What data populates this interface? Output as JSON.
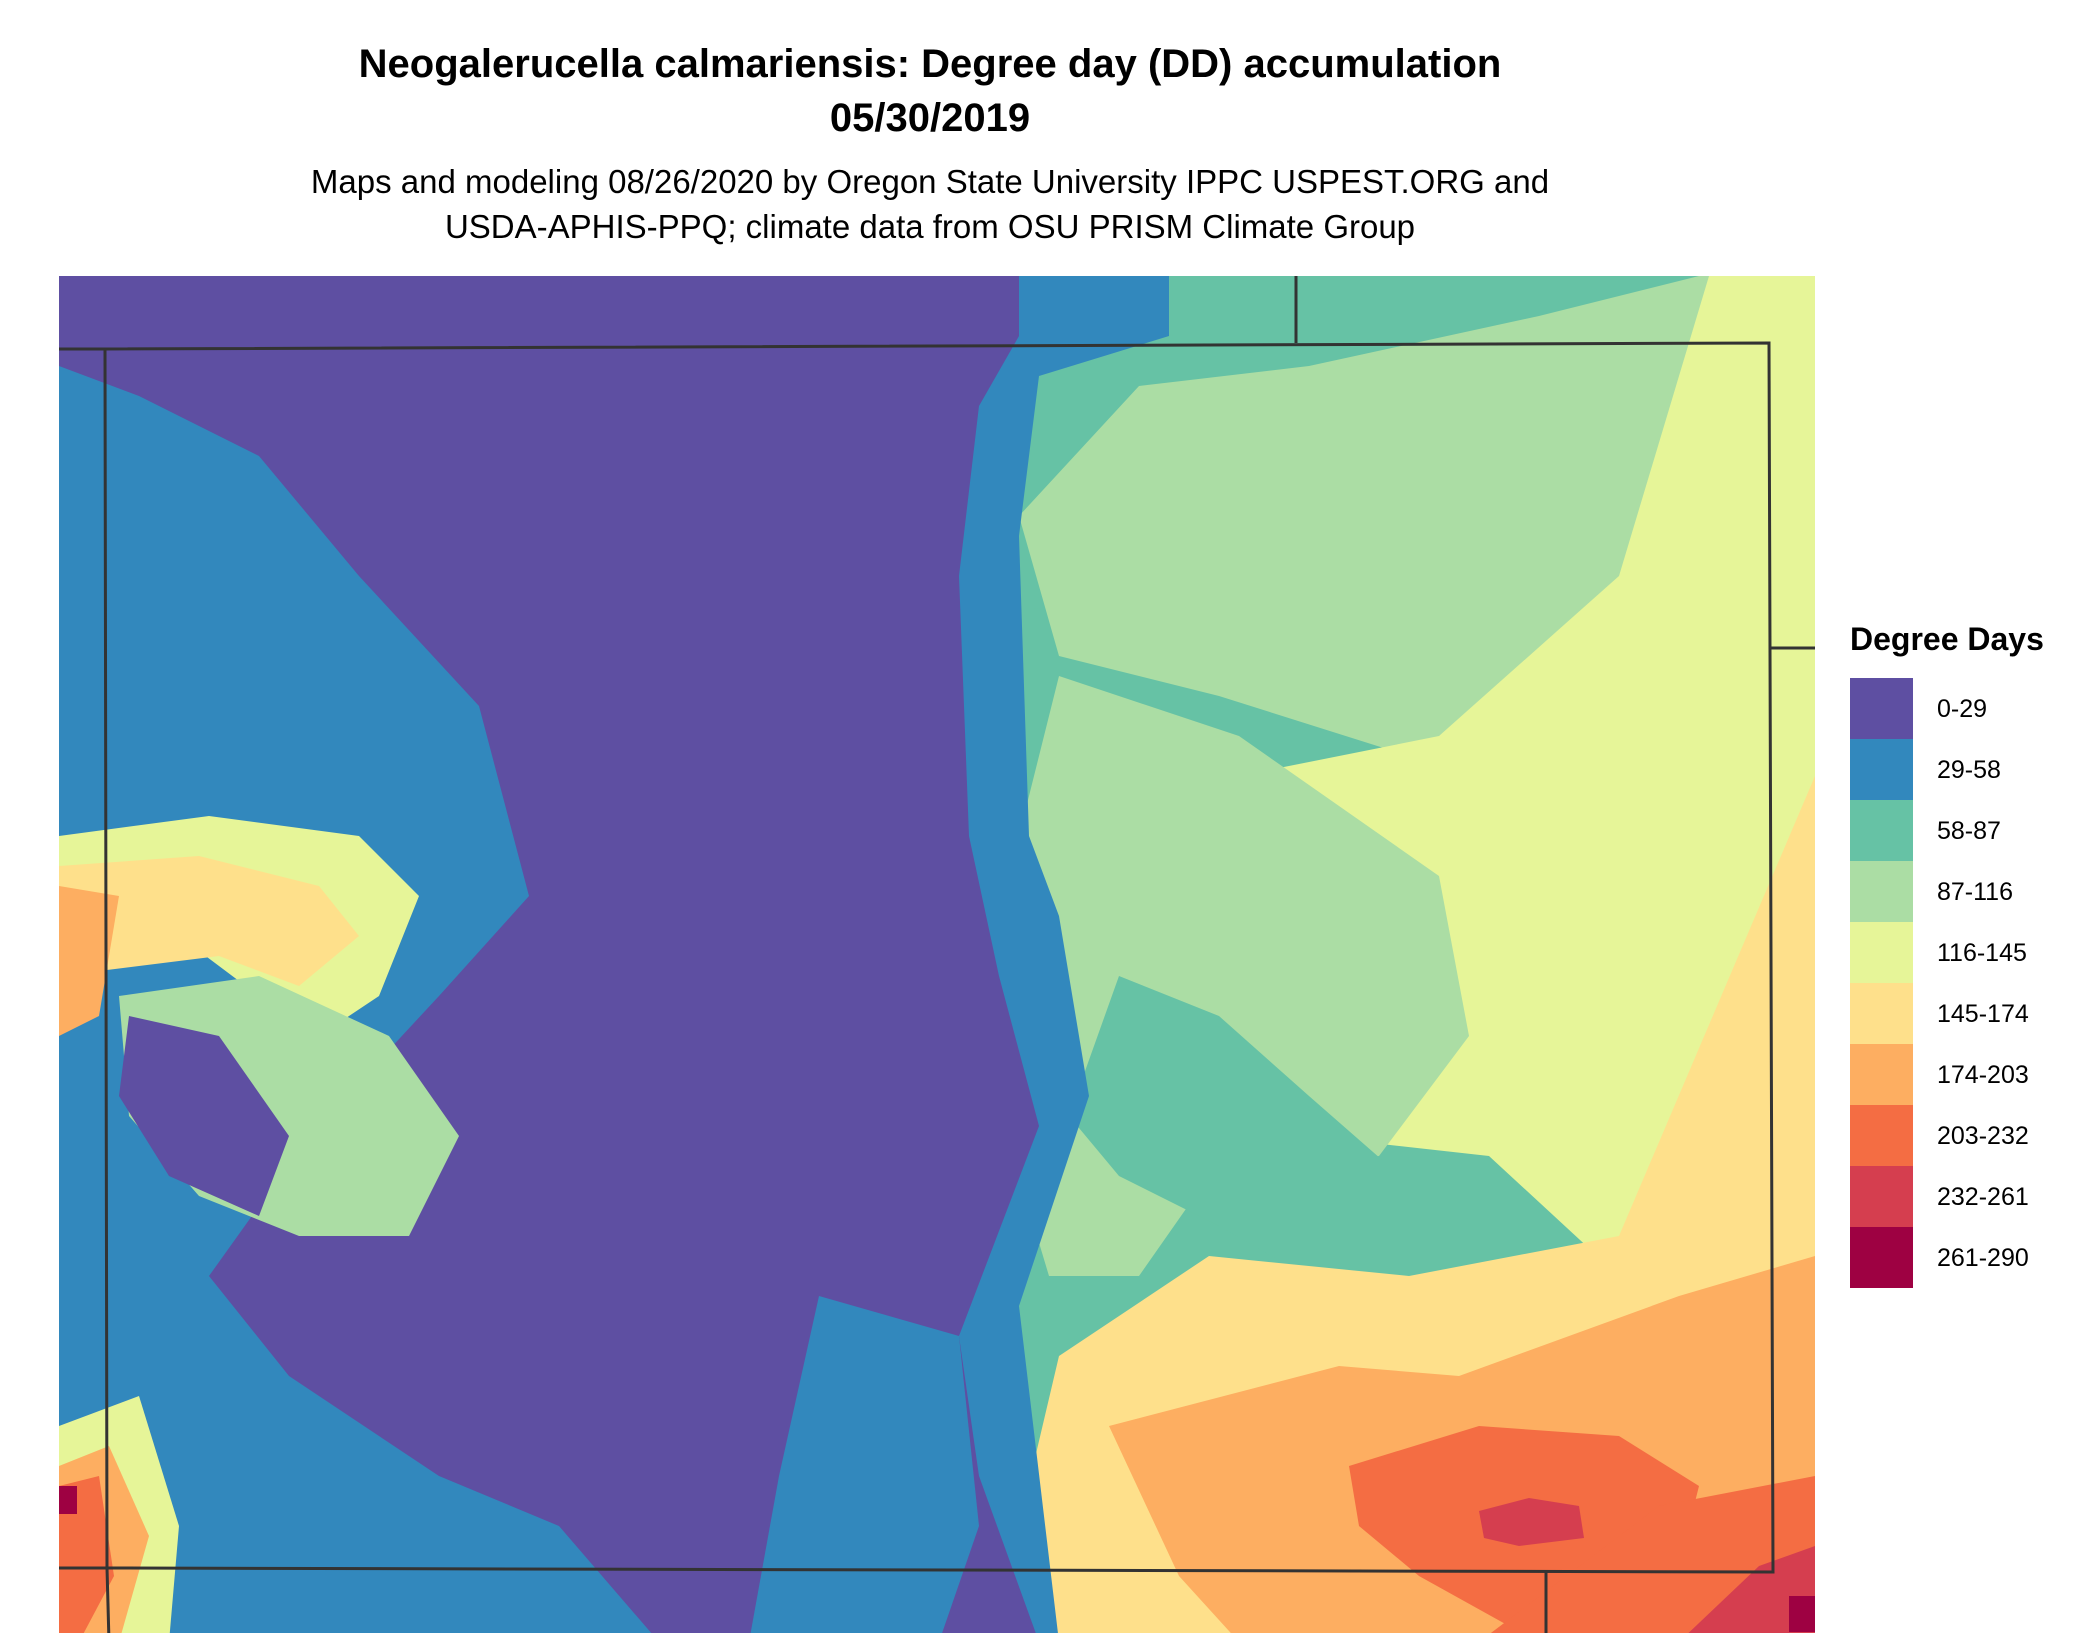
{
  "title": {
    "line1": "Neogalerucella calmariensis: Degree day (DD) accumulation",
    "line2": "05/30/2019"
  },
  "subtitle": {
    "line1": "Maps and modeling 08/26/2020 by Oregon State University IPPC USPEST.ORG and",
    "line2": "USDA-APHIS-PPQ; climate data from OSU PRISM Climate Group"
  },
  "legend": {
    "title": "Degree Days",
    "items": [
      {
        "label": "0-29",
        "color": "#5E4FA2"
      },
      {
        "label": "29-58",
        "color": "#3288BD"
      },
      {
        "label": "58-87",
        "color": "#66C2A5"
      },
      {
        "label": "87-116",
        "color": "#ABDDA4"
      },
      {
        "label": "116-145",
        "color": "#E6F598"
      },
      {
        "label": "145-174",
        "color": "#FEE08B"
      },
      {
        "label": "174-203",
        "color": "#FDAE61"
      },
      {
        "label": "203-232",
        "color": "#F46D43"
      },
      {
        "label": "232-261",
        "color": "#D53E4F"
      },
      {
        "label": "261-290",
        "color": "#9E0142"
      }
    ]
  },
  "map": {
    "border_color": "#333333"
  }
}
